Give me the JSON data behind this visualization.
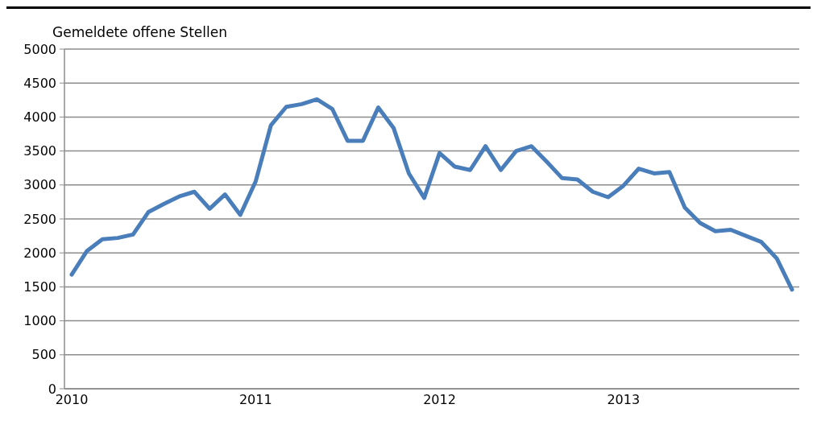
{
  "chart_data": {
    "type": "line",
    "ylabel": "Gemeldete offene Stellen",
    "categories": [
      "2010",
      null,
      null,
      null,
      null,
      null,
      null,
      null,
      null,
      null,
      null,
      null,
      "2011",
      null,
      null,
      null,
      null,
      null,
      null,
      null,
      null,
      null,
      null,
      null,
      "2012",
      null,
      null,
      null,
      null,
      null,
      null,
      null,
      null,
      null,
      null,
      null,
      "2013",
      null,
      null,
      null,
      null,
      null,
      null,
      null,
      null,
      null,
      null,
      null
    ],
    "series": [
      {
        "color": "#4a7ebb",
        "values": [
          1680,
          2030,
          2200,
          2220,
          2270,
          2600,
          2720,
          2830,
          2900,
          2650,
          2860,
          2560,
          3050,
          3880,
          4150,
          4190,
          4260,
          4120,
          3650,
          3650,
          4140,
          3840,
          3170,
          2810,
          3470,
          3270,
          3220,
          3570,
          3220,
          3500,
          3570,
          3340,
          3100,
          3080,
          2900,
          2820,
          2990,
          3240,
          3170,
          3190,
          2670,
          2440,
          2320,
          2340,
          2250,
          2160,
          1920,
          1460
        ]
      }
    ],
    "ylim": [
      0,
      5000
    ],
    "yticks": [
      0,
      500,
      1000,
      1500,
      2000,
      2500,
      3000,
      3500,
      4000,
      4500,
      5000
    ],
    "grid": "y",
    "legend": false,
    "marker": "none",
    "line_style": "solid"
  }
}
